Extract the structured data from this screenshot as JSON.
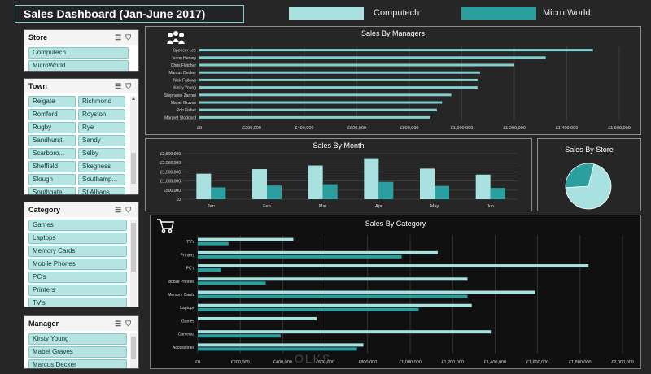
{
  "header": {
    "title": "Sales Dashboard (Jan-June 2017)"
  },
  "legend": [
    {
      "label": "Computech",
      "color": "#a8e1df"
    },
    {
      "label": "Micro World",
      "color": "#2b9ea0"
    }
  ],
  "colors": {
    "computech": "#a8e1df",
    "microworld": "#2b9ea0",
    "slicer_item": "#b6e4e2"
  },
  "slicers": {
    "store": {
      "title": "Store",
      "items": [
        "Computech",
        "MicroWorld"
      ]
    },
    "town": {
      "title": "Town",
      "items": [
        "Reigate",
        "Richmond",
        "Romford",
        "Royston",
        "Rugby",
        "Rye",
        "Sandhurst",
        "Sandy",
        "Scarboro...",
        "Selby",
        "Sheffield",
        "Skegness",
        "Slough",
        "Southamp...",
        "Southgate",
        "St Albans"
      ]
    },
    "category": {
      "title": "Category",
      "items": [
        "Games",
        "Laptops",
        "Memory Cards",
        "Mobile Phones",
        "PC's",
        "Printers",
        "TV's"
      ]
    },
    "manager": {
      "title": "Manager",
      "items": [
        "Kirsty Young",
        "Mabel Graves",
        "Marcus Decker"
      ]
    }
  },
  "charts": {
    "managers_title": "Sales By Managers",
    "month_title": "Sales By Month",
    "store_title": "Sales By Store",
    "category_title": "Sales By Category"
  },
  "icons": {
    "managers": "people-group-icon",
    "category": "shopping-cart-icon",
    "slicer_multi": "multi-select-icon",
    "slicer_filter": "clear-filter-icon"
  },
  "watermark": "OLKS",
  "chart_data": [
    {
      "id": "managers",
      "type": "bar",
      "orientation": "horizontal",
      "title": "Sales By Managers",
      "categories": [
        "Spencer Lee",
        "Jason Hervey",
        "Chris Fletcher",
        "Marcus Decker",
        "Nick Fallows",
        "Kirsty Young",
        "Stephanie Zanoni",
        "Mabel Graves",
        "Rob Fisher",
        "Margret Stoddard"
      ],
      "series": [
        {
          "values": [
            1500000,
            1320000,
            1200000,
            1070000,
            1060000,
            1060000,
            960000,
            925000,
            905000,
            880000
          ]
        }
      ],
      "xlim": [
        0,
        1600000
      ],
      "xticks": [
        "£0",
        "£200,000",
        "£400,000",
        "£600,000",
        "£800,000",
        "£1,000,000",
        "£1,200,000",
        "£1,400,000",
        "£1,600,000"
      ]
    },
    {
      "id": "month",
      "type": "bar",
      "title": "Sales By Month",
      "categories": [
        "Jan",
        "Feb",
        "Mar",
        "Apr",
        "May",
        "Jun"
      ],
      "series": [
        {
          "name": "Computech",
          "values": [
            1400000,
            1650000,
            1850000,
            2250000,
            1680000,
            1350000
          ]
        },
        {
          "name": "Micro World",
          "values": [
            650000,
            750000,
            820000,
            950000,
            730000,
            620000
          ]
        }
      ],
      "ylim": [
        0,
        2500000
      ],
      "yticks": [
        "£0",
        "£500,000",
        "£1,000,000",
        "£1,500,000",
        "£2,000,000",
        "£2,500,000"
      ]
    },
    {
      "id": "store",
      "type": "pie",
      "title": "Sales By Store",
      "categories": [
        "Computech",
        "Micro World"
      ],
      "values": [
        70,
        30
      ]
    },
    {
      "id": "category",
      "type": "bar",
      "orientation": "horizontal",
      "title": "Sales By Category",
      "categories": [
        "TV's",
        "Printers",
        "PC's",
        "Mobile Phones",
        "Memory Cards",
        "Laptops",
        "Games",
        "Cameras",
        "Accessories"
      ],
      "series": [
        {
          "name": "Computech",
          "values": [
            450000,
            1130000,
            1840000,
            1270000,
            1590000,
            1290000,
            560000,
            1380000,
            780000
          ]
        },
        {
          "name": "Micro World",
          "values": [
            145000,
            960000,
            110000,
            320000,
            1270000,
            1040000,
            0,
            390000,
            750000
          ]
        }
      ],
      "xlim": [
        0,
        2000000
      ],
      "xticks": [
        "£0",
        "£200,000",
        "£400,000",
        "£600,000",
        "£800,000",
        "£1,000,000",
        "£1,200,000",
        "£1,400,000",
        "£1,600,000",
        "£1,800,000",
        "£2,000,000"
      ]
    }
  ]
}
